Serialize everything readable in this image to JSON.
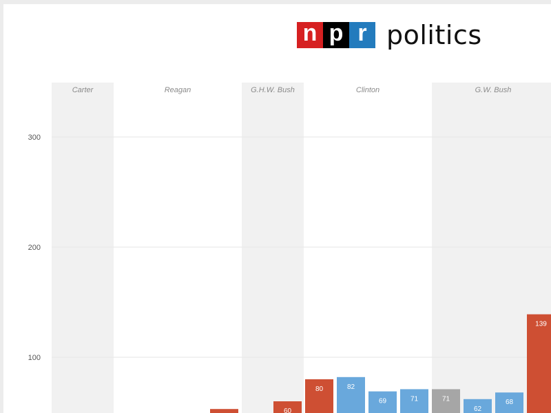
{
  "logo": {
    "letters": [
      "n",
      "p",
      "r"
    ],
    "letter_colors": [
      "#d62021",
      "#000000",
      "#237bbd"
    ],
    "word": "politics"
  },
  "chart_data": {
    "type": "bar",
    "ylim": [
      0,
      350
    ],
    "yticks": [
      100,
      200,
      300
    ],
    "grid": true,
    "presidencies": [
      {
        "name": "Carter",
        "shaded": true
      },
      {
        "name": "Reagan",
        "shaded": false
      },
      {
        "name": "G.H.W. Bush",
        "shaded": true
      },
      {
        "name": "Clinton",
        "shaded": false
      },
      {
        "name": "G.W. Bush",
        "shaded": true
      }
    ],
    "bars": [
      {
        "value": 53,
        "label": "",
        "color": "#ce4f33"
      },
      {
        "value": 60,
        "label": "60",
        "color": "#ce4f33"
      },
      {
        "value": 80,
        "label": "80",
        "color": "#ce4f33"
      },
      {
        "value": 82,
        "label": "82",
        "color": "#69a8dc"
      },
      {
        "value": 69,
        "label": "69",
        "color": "#69a8dc"
      },
      {
        "value": 71,
        "label": "71",
        "color": "#69a8dc"
      },
      {
        "value": 71,
        "label": "71",
        "color": "#a6a6a6"
      },
      {
        "value": 62,
        "label": "62",
        "color": "#69a8dc"
      },
      {
        "value": 68,
        "label": "68",
        "color": "#69a8dc"
      },
      {
        "value": 139,
        "label": "139",
        "color": "#ce4f33"
      }
    ],
    "colors": {
      "band": "#f1f1f1",
      "grid": "#e6e6e6"
    }
  }
}
